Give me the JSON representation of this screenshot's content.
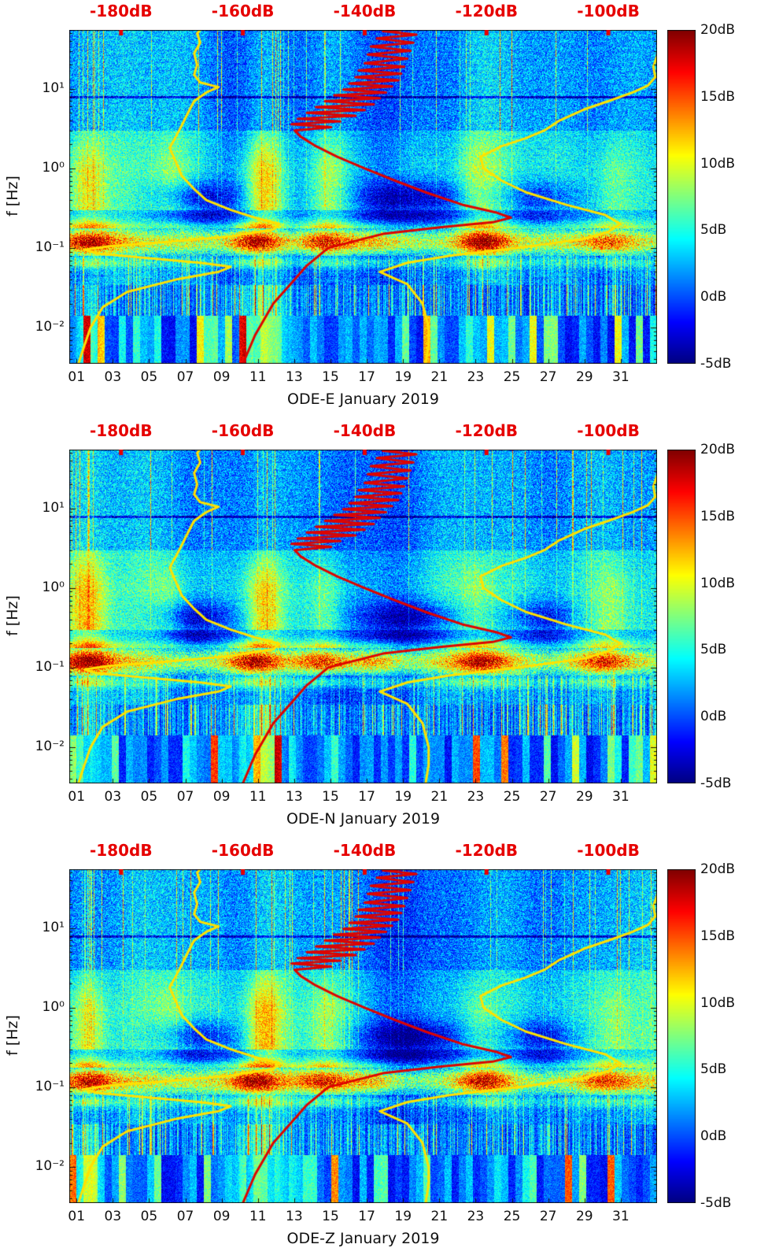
{
  "page": {
    "background": "#ffffff"
  },
  "chart_data": {
    "type": "heatmap",
    "description": "Three stacked spectrograms (power spectral density deviation in dB vs day of month and frequency) for components ODE-E, ODE-N, ODE-Z, January 2019, with overlaid spectral percentile curves (yellow) and median curve (red) plotted against the red top dB axis.",
    "panels": [
      {
        "id": "ODE-E",
        "xlabel": "ODE-E January 2019",
        "seed": 101
      },
      {
        "id": "ODE-N",
        "xlabel": "ODE-N January 2019",
        "seed": 202
      },
      {
        "id": "ODE-Z",
        "xlabel": "ODE-Z January 2019",
        "seed": 303
      }
    ],
    "x_axis": {
      "domain_days": [
        0.6,
        33
      ],
      "ticks": [
        {
          "value": 1,
          "label": "01"
        },
        {
          "value": 3,
          "label": "03"
        },
        {
          "value": 5,
          "label": "05"
        },
        {
          "value": 7,
          "label": "07"
        },
        {
          "value": 9,
          "label": "09"
        },
        {
          "value": 11,
          "label": "11"
        },
        {
          "value": 13,
          "label": "13"
        },
        {
          "value": 15,
          "label": "15"
        },
        {
          "value": 17,
          "label": "17"
        },
        {
          "value": 19,
          "label": "19"
        },
        {
          "value": 21,
          "label": "21"
        },
        {
          "value": 23,
          "label": "23"
        },
        {
          "value": 25,
          "label": "25"
        },
        {
          "value": 27,
          "label": "27"
        },
        {
          "value": 29,
          "label": "29"
        },
        {
          "value": 31,
          "label": "31"
        }
      ]
    },
    "y_axis": {
      "label": "f [Hz]",
      "scale": "log",
      "domain_hz": [
        0.0035,
        55
      ],
      "ticks": [
        {
          "value": 10,
          "label": "10¹"
        },
        {
          "value": 1,
          "label": "10⁰"
        },
        {
          "value": 0.1,
          "label": "10⁻¹"
        },
        {
          "value": 0.01,
          "label": "10⁻²"
        }
      ]
    },
    "top_axis": {
      "color": "#e60000",
      "domain_db": [
        -188.5,
        -92
      ],
      "ticks": [
        {
          "value": -180,
          "label": "-180dB"
        },
        {
          "value": -160,
          "label": "-160dB"
        },
        {
          "value": -140,
          "label": "-140dB"
        },
        {
          "value": -120,
          "label": "-120dB"
        },
        {
          "value": -100,
          "label": "-100dB"
        }
      ]
    },
    "colorbar": {
      "colormap": "jet",
      "domain_db": [
        -5,
        20
      ],
      "ticks": [
        {
          "value": 20,
          "label": "20dB"
        },
        {
          "value": 15,
          "label": "15dB"
        },
        {
          "value": 10,
          "label": "10dB"
        },
        {
          "value": 5,
          "label": "5dB"
        },
        {
          "value": 0,
          "label": "0dB"
        },
        {
          "value": -5,
          "label": "-5dB"
        }
      ]
    },
    "heatmap_model": {
      "storm_band_hz": [
        0.08,
        0.18
      ],
      "storms": [
        {
          "day": 1.7,
          "amp": 11
        },
        {
          "day": 10.8,
          "amp": 12
        },
        {
          "day": 14.6,
          "amp": 9
        },
        {
          "day": 17.5,
          "amp": 5
        },
        {
          "day": 23.3,
          "amp": 10
        },
        {
          "day": 30.2,
          "amp": 7
        }
      ],
      "quiet": [
        {
          "day": 7.5,
          "amp": 4.5,
          "sigma": 1.6
        },
        {
          "day": 19.5,
          "amp": 4.5,
          "sigma": 2.2
        },
        {
          "day": 26.5,
          "amp": 3.5,
          "sigma": 1.5
        }
      ],
      "bright_columns": [
        {
          "day": 1.6,
          "amp": 8
        },
        {
          "day": 6.2,
          "amp": 4
        },
        {
          "day": 11.3,
          "amp": 10
        },
        {
          "day": 14.8,
          "amp": 6
        },
        {
          "day": 23.0,
          "amp": 4
        },
        {
          "day": 30.5,
          "amp": 4
        }
      ],
      "dark_line_hz": 8
    },
    "overlays": {
      "p10": {
        "color": "#ffe100",
        "points": [
          [
            0.0035,
            -187
          ],
          [
            0.006,
            -186
          ],
          [
            0.01,
            -185
          ],
          [
            0.018,
            -183
          ],
          [
            0.028,
            -179
          ],
          [
            0.04,
            -171
          ],
          [
            0.05,
            -164
          ],
          [
            0.058,
            -162
          ],
          [
            0.065,
            -167
          ],
          [
            0.075,
            -176
          ],
          [
            0.085,
            -184
          ],
          [
            0.095,
            -186
          ],
          [
            0.105,
            -182
          ],
          [
            0.12,
            -172
          ],
          [
            0.14,
            -162
          ],
          [
            0.17,
            -155
          ],
          [
            0.2,
            -154
          ],
          [
            0.24,
            -158
          ],
          [
            0.3,
            -162
          ],
          [
            0.4,
            -166
          ],
          [
            0.55,
            -168
          ],
          [
            0.8,
            -170
          ],
          [
            1.2,
            -171
          ],
          [
            1.8,
            -172
          ],
          [
            2.5,
            -171
          ],
          [
            3.5,
            -170
          ],
          [
            5,
            -169
          ],
          [
            7,
            -168
          ],
          [
            9,
            -166
          ],
          [
            10.5,
            -164
          ],
          [
            12,
            -167
          ],
          [
            15,
            -168
          ],
          [
            20,
            -167.5
          ],
          [
            28,
            -168
          ],
          [
            38,
            -167
          ],
          [
            50,
            -167.5
          ],
          [
            55,
            -167
          ]
        ]
      },
      "p90": {
        "color": "#ffe100",
        "points": [
          [
            0.0035,
            -130
          ],
          [
            0.006,
            -129.5
          ],
          [
            0.01,
            -129.5
          ],
          [
            0.02,
            -130.5
          ],
          [
            0.035,
            -133
          ],
          [
            0.05,
            -137.5
          ],
          [
            0.065,
            -133
          ],
          [
            0.08,
            -126
          ],
          [
            0.1,
            -115
          ],
          [
            0.13,
            -104
          ],
          [
            0.16,
            -100
          ],
          [
            0.2,
            -98
          ],
          [
            0.26,
            -100.5
          ],
          [
            0.35,
            -107
          ],
          [
            0.5,
            -113.5
          ],
          [
            0.7,
            -117.5
          ],
          [
            1,
            -120.5
          ],
          [
            1.4,
            -121
          ],
          [
            1.9,
            -117.5
          ],
          [
            2.4,
            -113.5
          ],
          [
            3,
            -110.5
          ],
          [
            4,
            -108
          ],
          [
            5.5,
            -104
          ],
          [
            7,
            -100
          ],
          [
            9,
            -96
          ],
          [
            11,
            -93.5
          ],
          [
            14,
            -92.3
          ],
          [
            19,
            -92.6
          ],
          [
            26,
            -92
          ],
          [
            36,
            -91.8
          ],
          [
            48,
            -91.5
          ],
          [
            55,
            -91.4
          ]
        ]
      },
      "median": {
        "color": "#dd0400",
        "points": [
          [
            0.0035,
            -160
          ],
          [
            0.008,
            -158
          ],
          [
            0.02,
            -155
          ],
          [
            0.04,
            -151.5
          ],
          [
            0.06,
            -149.5
          ],
          [
            0.08,
            -147.5
          ],
          [
            0.1,
            -146
          ],
          [
            0.12,
            -142
          ],
          [
            0.15,
            -137
          ],
          [
            0.18,
            -128
          ],
          [
            0.21,
            -119
          ],
          [
            0.24,
            -116
          ],
          [
            0.28,
            -118.5
          ],
          [
            0.35,
            -124
          ],
          [
            0.5,
            -130
          ],
          [
            0.7,
            -135
          ],
          [
            1,
            -140
          ],
          [
            1.4,
            -144.5
          ],
          [
            1.9,
            -148
          ],
          [
            2.5,
            -150.5
          ],
          [
            3,
            -151.5
          ],
          [
            3.3,
            -145.5
          ],
          [
            3.6,
            -152
          ],
          [
            3.9,
            -144
          ],
          [
            4.2,
            -151
          ],
          [
            4.6,
            -141.5
          ],
          [
            5,
            -149.5
          ],
          [
            5.4,
            -140
          ],
          [
            5.9,
            -148
          ],
          [
            6.4,
            -138.5
          ],
          [
            7,
            -146.5
          ],
          [
            7.6,
            -137.5
          ],
          [
            8.3,
            -145
          ],
          [
            9,
            -136.5
          ],
          [
            9.8,
            -143.5
          ],
          [
            10.7,
            -135.5
          ],
          [
            11.7,
            -142.5
          ],
          [
            12.8,
            -134.5
          ],
          [
            14,
            -141.5
          ],
          [
            15.5,
            -134
          ],
          [
            17,
            -141
          ],
          [
            19,
            -133.5
          ],
          [
            21,
            -140
          ],
          [
            24,
            -133
          ],
          [
            27,
            -139.5
          ],
          [
            30,
            -132.5
          ],
          [
            34,
            -139
          ],
          [
            38,
            -132
          ],
          [
            43,
            -138
          ],
          [
            48,
            -131.5
          ],
          [
            53,
            -137
          ],
          [
            55,
            -134
          ]
        ]
      }
    }
  }
}
